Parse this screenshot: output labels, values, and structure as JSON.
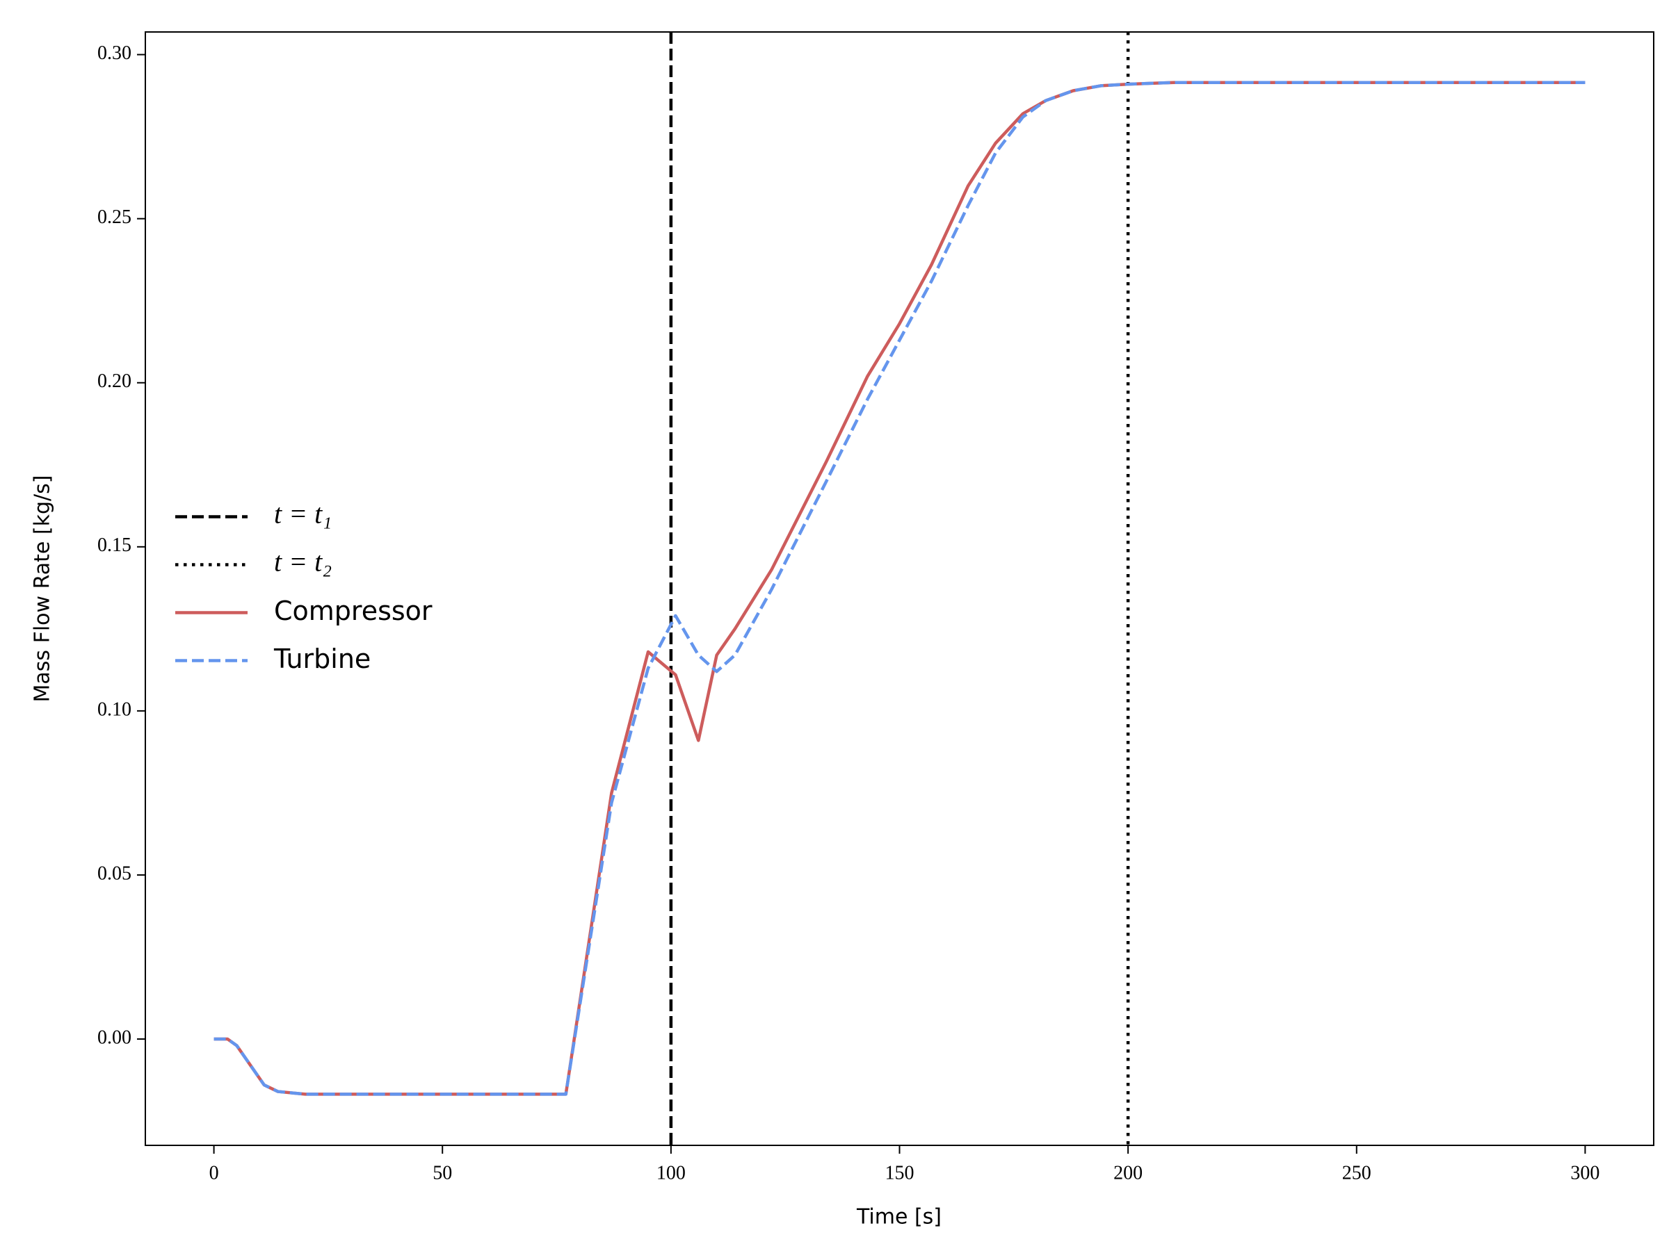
{
  "chart_data": {
    "type": "line",
    "xlabel": "Time [s]",
    "ylabel": "Mass Flow Rate [kg/s]",
    "x": [
      0,
      3,
      5,
      8,
      11,
      14,
      20,
      77,
      87,
      95,
      101,
      106,
      110,
      114,
      122,
      134,
      143,
      150,
      157,
      165,
      171,
      177,
      182,
      188,
      194,
      200,
      210,
      300
    ],
    "series": [
      {
        "name": "Compressor",
        "color": "#cd5c5c",
        "linestyle": "solid",
        "values": [
          0,
          0,
          -0.002,
          -0.008,
          -0.014,
          -0.016,
          -0.0168,
          -0.0168,
          0.075,
          0.118,
          0.111,
          0.091,
          0.117,
          0.125,
          0.143,
          0.176,
          0.202,
          0.218,
          0.236,
          0.26,
          0.273,
          0.282,
          0.286,
          0.289,
          0.2905,
          0.291,
          0.2915,
          0.2915
        ]
      },
      {
        "name": "Turbine",
        "color": "#6495ed",
        "linestyle": "dashed",
        "values": [
          0,
          0,
          -0.002,
          -0.008,
          -0.014,
          -0.016,
          -0.0168,
          -0.0168,
          0.072,
          0.113,
          0.129,
          0.117,
          0.112,
          0.117,
          0.137,
          0.17,
          0.195,
          0.213,
          0.231,
          0.254,
          0.27,
          0.281,
          0.286,
          0.289,
          0.2905,
          0.291,
          0.2915,
          0.2915
        ]
      }
    ],
    "vlines": [
      {
        "x": 100,
        "label": "t = t₁",
        "color": "#000000",
        "linestyle": "dashed"
      },
      {
        "x": 200,
        "label": "t = t₂",
        "color": "#000000",
        "linestyle": "dotted"
      }
    ],
    "xlim": [
      -15,
      315
    ],
    "xticks": [
      0,
      50,
      100,
      150,
      200,
      250,
      300
    ],
    "ylim": [
      -0.0324,
      0.3069
    ],
    "yticks": [
      {
        "value": 0,
        "label": "0.00"
      },
      {
        "value": 0.05,
        "label": "0.05"
      },
      {
        "value": 0.1,
        "label": "0.10"
      },
      {
        "value": 0.15,
        "label": "0.15"
      },
      {
        "value": 0.2,
        "label": "0.20"
      },
      {
        "value": 0.25,
        "label": "0.25"
      },
      {
        "value": 0.3,
        "label": "0.30"
      }
    ],
    "legend": "center left",
    "grid": false
  }
}
